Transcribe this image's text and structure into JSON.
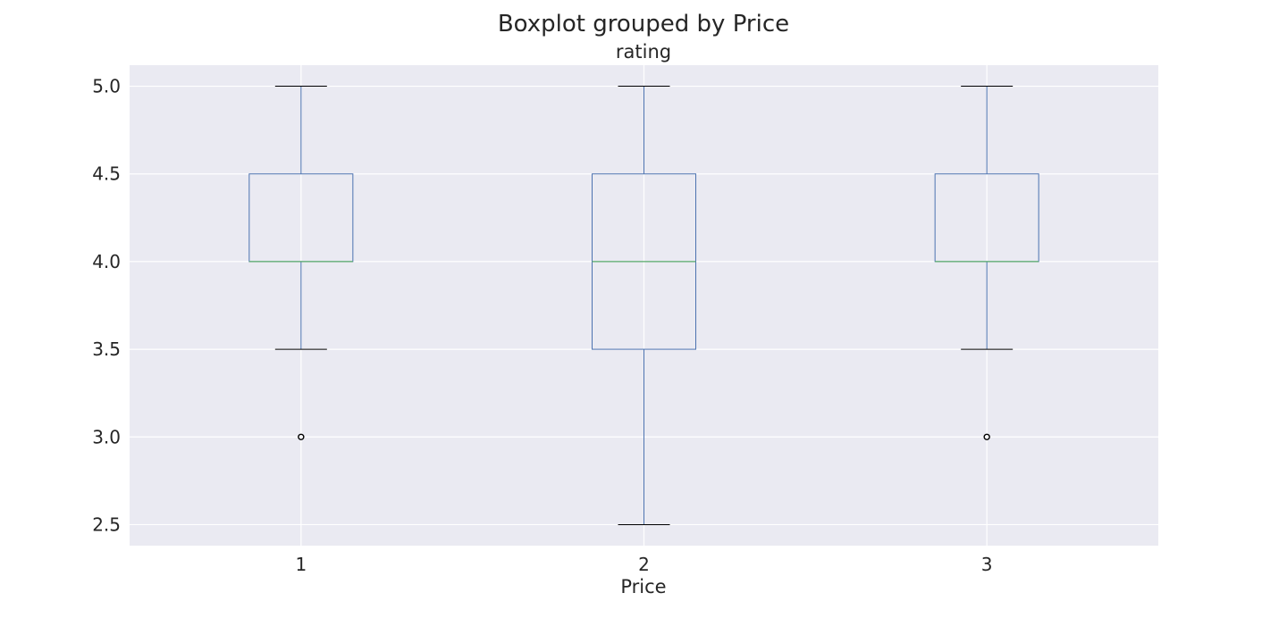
{
  "chart_data": {
    "type": "boxplot",
    "title": "Boxplot grouped by Price",
    "subtitle": "rating",
    "xlabel": "Price",
    "ylabel": "",
    "ylim": [
      2.38,
      5.12
    ],
    "yticks": [
      "2.5",
      "3.0",
      "3.5",
      "4.0",
      "4.5",
      "5.0"
    ],
    "grid": true,
    "categories": [
      "1",
      "2",
      "3"
    ],
    "boxes": [
      {
        "category": "1",
        "whisker_low": 3.5,
        "q1": 4.0,
        "median": 4.0,
        "q3": 4.5,
        "whisker_high": 5.0,
        "outliers": [
          3.0
        ]
      },
      {
        "category": "2",
        "whisker_low": 2.5,
        "q1": 3.5,
        "median": 4.0,
        "q3": 4.5,
        "whisker_high": 5.0,
        "outliers": []
      },
      {
        "category": "3",
        "whisker_low": 3.5,
        "q1": 4.0,
        "median": 4.0,
        "q3": 4.5,
        "whisker_high": 5.0,
        "outliers": [
          3.0
        ]
      }
    ],
    "colors": {
      "plot_background": "#eaeaf2",
      "grid": "#ffffff",
      "box": "#4c72b0",
      "median": "#55a868",
      "whisker_cap": "#000000",
      "outlier": "#000000"
    }
  }
}
